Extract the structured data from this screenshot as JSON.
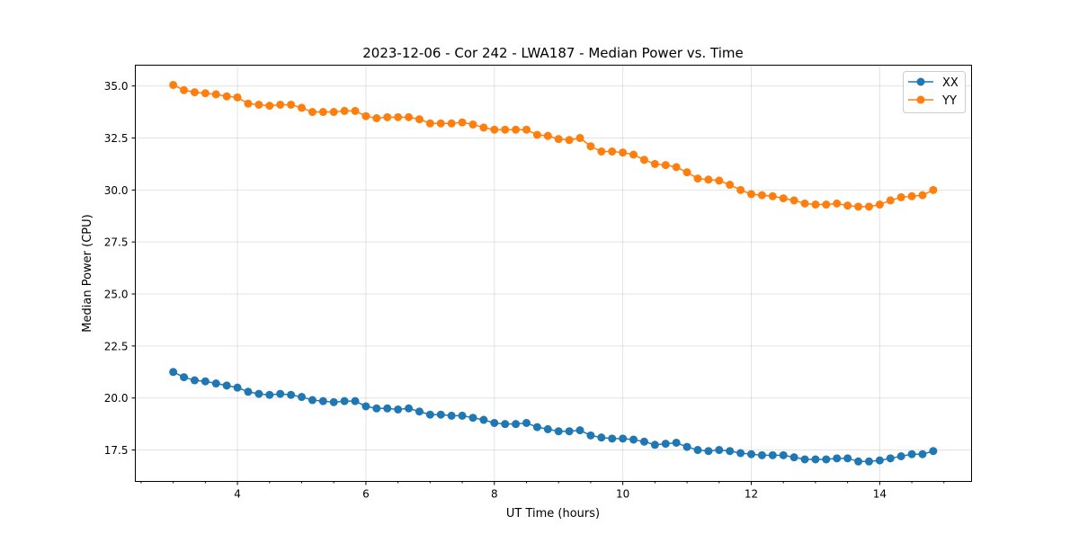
{
  "chart_data": {
    "type": "line",
    "title": "2023-12-06 - Cor 242 - LWA187 - Median Power vs. Time",
    "xlabel": "UT Time (hours)",
    "ylabel": "Median Power (CPU)",
    "xlim": [
      2.41,
      15.43
    ],
    "ylim": [
      15.99,
      36.0
    ],
    "xticks": [
      4,
      6,
      8,
      10,
      12,
      14
    ],
    "xtick_labels": [
      "4",
      "6",
      "8",
      "10",
      "12",
      "14"
    ],
    "yticks": [
      17.5,
      20.0,
      22.5,
      25.0,
      27.5,
      30.0,
      32.5,
      35.0
    ],
    "ytick_labels": [
      "17.5",
      "20.0",
      "22.5",
      "25.0",
      "27.5",
      "30.0",
      "32.5",
      "35.0"
    ],
    "grid": true,
    "legend_position": "top-right",
    "x_start": 3.0,
    "x_step_hours": 0.16667,
    "series": [
      {
        "name": "XX",
        "color": "#1f77b4",
        "values": [
          21.25,
          21.0,
          20.85,
          20.8,
          20.7,
          20.6,
          20.5,
          20.3,
          20.2,
          20.15,
          20.2,
          20.15,
          20.05,
          19.9,
          19.85,
          19.8,
          19.85,
          19.85,
          19.6,
          19.5,
          19.5,
          19.45,
          19.5,
          19.35,
          19.2,
          19.2,
          19.15,
          19.15,
          19.05,
          18.95,
          18.8,
          18.75,
          18.75,
          18.8,
          18.6,
          18.5,
          18.4,
          18.4,
          18.45,
          18.2,
          18.1,
          18.05,
          18.05,
          18.0,
          17.9,
          17.75,
          17.8,
          17.85,
          17.65,
          17.5,
          17.45,
          17.5,
          17.45,
          17.35,
          17.3,
          17.25,
          17.25,
          17.25,
          17.15,
          17.05,
          17.05,
          17.05,
          17.1,
          17.1,
          16.95,
          16.95,
          17.0,
          17.1,
          17.2,
          17.3,
          17.3,
          17.45
        ]
      },
      {
        "name": "YY",
        "color": "#ff7f0e",
        "values": [
          35.05,
          34.8,
          34.7,
          34.65,
          34.6,
          34.5,
          34.45,
          34.15,
          34.1,
          34.05,
          34.1,
          34.1,
          33.95,
          33.75,
          33.75,
          33.75,
          33.8,
          33.8,
          33.55,
          33.45,
          33.5,
          33.5,
          33.5,
          33.4,
          33.2,
          33.2,
          33.2,
          33.25,
          33.15,
          33.0,
          32.9,
          32.9,
          32.9,
          32.9,
          32.65,
          32.6,
          32.45,
          32.4,
          32.5,
          32.1,
          31.85,
          31.85,
          31.8,
          31.7,
          31.45,
          31.25,
          31.2,
          31.1,
          30.85,
          30.55,
          30.5,
          30.45,
          30.25,
          30.0,
          29.8,
          29.75,
          29.7,
          29.6,
          29.5,
          29.35,
          29.3,
          29.3,
          29.35,
          29.25,
          29.2,
          29.2,
          29.3,
          29.5,
          29.65,
          29.7,
          29.75,
          30.0
        ]
      }
    ]
  }
}
